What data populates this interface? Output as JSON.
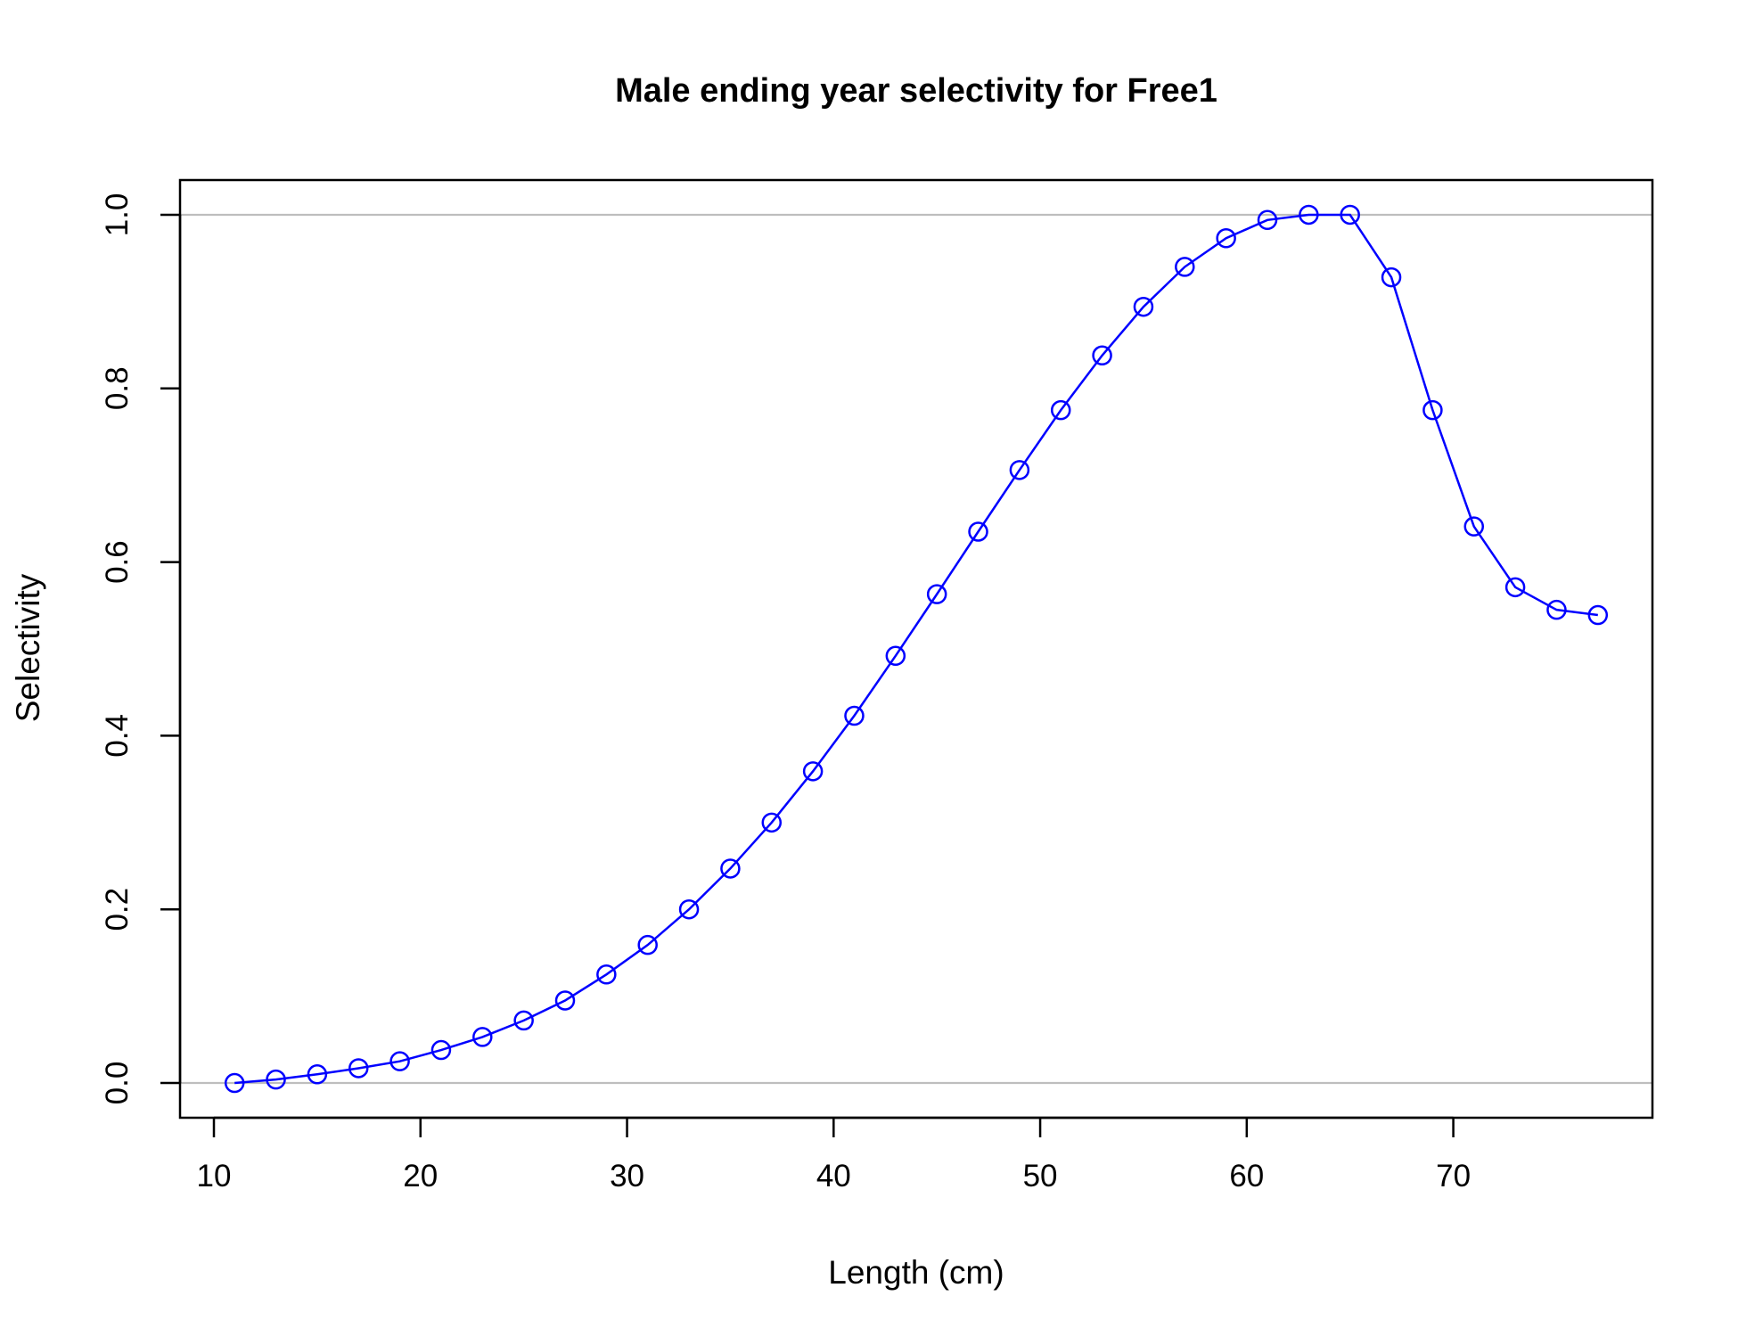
{
  "chart_data": {
    "type": "line",
    "title": "Male ending year selectivity for Free1",
    "xlabel": "Length (cm)",
    "ylabel": "Selectivity",
    "xlim": [
      8.36,
      79.64
    ],
    "ylim": [
      -0.04,
      1.04
    ],
    "x_ticks": [
      10,
      20,
      30,
      40,
      50,
      60,
      70
    ],
    "y_ticks": [
      0.0,
      0.2,
      0.4,
      0.6,
      0.8,
      1.0
    ],
    "x_tick_labels": [
      "10",
      "20",
      "30",
      "40",
      "50",
      "60",
      "70"
    ],
    "y_tick_labels": [
      "0.0",
      "0.2",
      "0.4",
      "0.6",
      "0.8",
      "1.0"
    ],
    "reference_lines": [
      0,
      1
    ],
    "series_color": "#0000ff",
    "reference_line_color": "#bebebe",
    "marker": "open-circle",
    "series": [
      {
        "x": [
          11,
          13,
          15,
          17,
          19,
          21,
          23,
          25,
          27,
          29,
          31,
          33,
          35,
          37,
          39,
          41,
          43,
          45,
          47,
          49,
          51,
          53,
          55,
          57,
          59,
          61,
          63,
          65,
          67,
          69,
          71,
          73,
          75,
          77
        ],
        "values": [
          0.0,
          0.004,
          0.01,
          0.017,
          0.025,
          0.038,
          0.053,
          0.072,
          0.095,
          0.125,
          0.159,
          0.2,
          0.247,
          0.3,
          0.359,
          0.423,
          0.492,
          0.563,
          0.635,
          0.706,
          0.775,
          0.838,
          0.894,
          0.94,
          0.973,
          0.994,
          1.0,
          1.0,
          0.928,
          0.775,
          0.641,
          0.571,
          0.545,
          0.539
        ]
      }
    ]
  }
}
